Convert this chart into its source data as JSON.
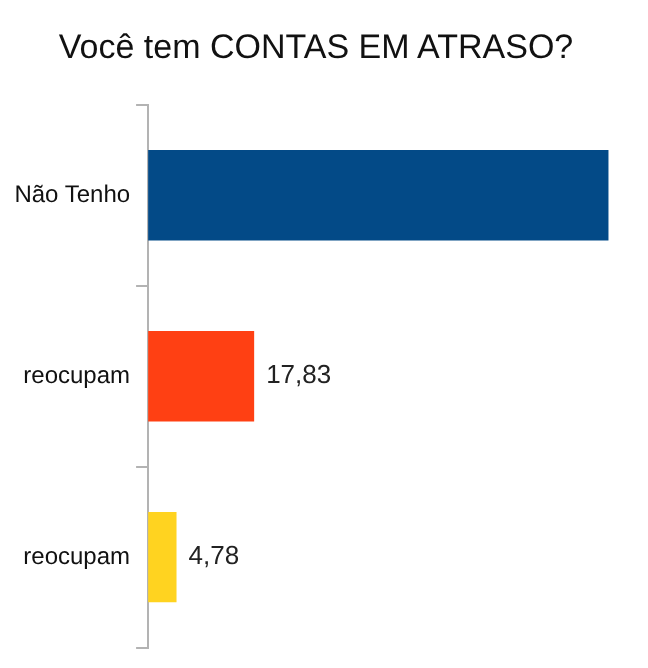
{
  "chart_data": {
    "type": "bar",
    "orientation": "horizontal",
    "title": "Você tem CONTAS EM ATRASO?",
    "categories": [
      "Não Tenho",
      "reocupam",
      "reocupam"
    ],
    "values": [
      77.39,
      17.83,
      4.78
    ],
    "colors": [
      "#034a87",
      "#ff4013",
      "#ffd320"
    ],
    "value_labels": [
      null,
      "17,83",
      "4,78"
    ],
    "tick_labels": "y",
    "grid": false,
    "legend": false
  }
}
